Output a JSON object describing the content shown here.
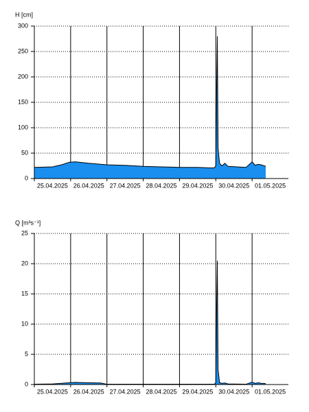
{
  "chart_data": [
    {
      "type": "area",
      "y_label": "H [cm]",
      "color": "#1a8fef",
      "grid": true,
      "xlim": [
        "2025-04-25T00:00",
        "2025-05-02T00:00"
      ],
      "xticks": [
        {
          "value": "2025-04-25T12:00",
          "label": "25.04.2025"
        },
        {
          "value": "2025-04-26T12:00",
          "label": "26.04.2025"
        },
        {
          "value": "2025-04-27T12:00",
          "label": "27.04.2025"
        },
        {
          "value": "2025-04-28T12:00",
          "label": "28.04.2025"
        },
        {
          "value": "2025-04-29T12:00",
          "label": "29.04.2025"
        },
        {
          "value": "2025-04-30T12:00",
          "label": "30.04.2025"
        },
        {
          "value": "2025-05-01T12:00",
          "label": "01.05.2025"
        }
      ],
      "ylim": [
        0,
        300
      ],
      "yticks": [
        0,
        50,
        100,
        150,
        200,
        250,
        300
      ],
      "x": [
        "2025-04-25T00:00",
        "2025-04-25T12:00",
        "2025-04-25T18:00",
        "2025-04-25T23:00",
        "2025-04-26T03:00",
        "2025-04-26T12:00",
        "2025-04-27T00:00",
        "2025-04-27T12:00",
        "2025-04-28T00:00",
        "2025-04-28T12:00",
        "2025-04-29T00:00",
        "2025-04-29T12:00",
        "2025-04-29T20:00",
        "2025-04-29T23:00",
        "2025-04-30T00:00",
        "2025-04-30T00:30",
        "2025-04-30T01:00",
        "2025-04-30T01:30",
        "2025-04-30T02:30",
        "2025-04-30T04:00",
        "2025-04-30T06:00",
        "2025-04-30T08:00",
        "2025-04-30T20:00",
        "2025-04-30T23:00",
        "2025-05-01T00:00",
        "2025-05-01T02:00",
        "2025-05-01T04:00",
        "2025-05-01T06:00",
        "2025-05-01T08:00",
        "2025-05-01T09:00"
      ],
      "values": [
        22,
        23,
        27,
        32,
        33,
        30,
        27,
        26,
        24,
        23,
        22,
        22,
        21,
        21,
        25,
        170,
        280,
        60,
        30,
        25,
        30,
        24,
        22,
        30,
        33,
        26,
        28,
        27,
        25,
        24
      ]
    },
    {
      "type": "area",
      "y_label": "Q [m³s⁻¹]",
      "color": "#1a8fef",
      "grid": true,
      "xlim": [
        "2025-04-25T00:00",
        "2025-05-02T00:00"
      ],
      "xticks": [
        {
          "value": "2025-04-25T12:00",
          "label": "25.04.2025"
        },
        {
          "value": "2025-04-26T12:00",
          "label": "26.04.2025"
        },
        {
          "value": "2025-04-27T12:00",
          "label": "27.04.2025"
        },
        {
          "value": "2025-04-28T12:00",
          "label": "28.04.2025"
        },
        {
          "value": "2025-04-29T12:00",
          "label": "29.04.2025"
        },
        {
          "value": "2025-04-30T12:00",
          "label": "30.04.2025"
        },
        {
          "value": "2025-05-01T12:00",
          "label": "01.05.2025"
        }
      ],
      "ylim": [
        0,
        25
      ],
      "yticks": [
        0,
        5,
        10,
        15,
        20,
        25
      ],
      "x": [
        "2025-04-25T00:00",
        "2025-04-25T12:00",
        "2025-04-25T18:00",
        "2025-04-25T23:00",
        "2025-04-26T03:00",
        "2025-04-26T12:00",
        "2025-04-26T20:00",
        "2025-04-27T00:00",
        "2025-04-28T00:00",
        "2025-04-29T00:00",
        "2025-04-29T23:00",
        "2025-04-30T00:00",
        "2025-04-30T00:30",
        "2025-04-30T01:00",
        "2025-04-30T01:30",
        "2025-04-30T02:30",
        "2025-04-30T04:00",
        "2025-04-30T06:00",
        "2025-04-30T08:00",
        "2025-04-30T20:00",
        "2025-05-01T00:00",
        "2025-05-01T02:00",
        "2025-05-01T04:00",
        "2025-05-01T06:00",
        "2025-05-01T09:00"
      ],
      "values": [
        0.05,
        0.1,
        0.2,
        0.3,
        0.35,
        0.3,
        0.25,
        0.05,
        0.05,
        0.05,
        0.05,
        0.3,
        12,
        20.5,
        2.5,
        0.3,
        0.2,
        0.25,
        0.1,
        0.05,
        0.4,
        0.2,
        0.3,
        0.2,
        0.15
      ]
    }
  ]
}
